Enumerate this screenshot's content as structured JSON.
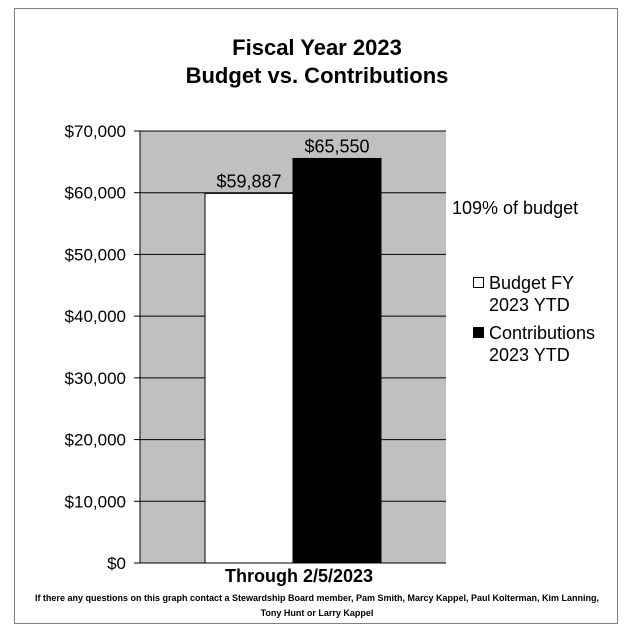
{
  "title_line1": "Fiscal Year 2023",
  "title_line2": "Budget vs. Contributions",
  "annotation": "109% of budget",
  "footnote": "If there any questions on this graph contact a Stewardship Board member, Pam Smith, Marcy Kappel, Paul Kolterman,  Kim Lanning, Tony Hunt  or Larry Kappel",
  "chart_data": {
    "type": "bar",
    "title": "Fiscal Year 2023 Budget vs. Contributions",
    "categories": [
      "Through 2/5/2023"
    ],
    "xlabel": "Through 2/5/2023",
    "ylabel": "",
    "ylim": [
      0,
      70000
    ],
    "y_ticks": [
      0,
      10000,
      20000,
      30000,
      40000,
      50000,
      60000,
      70000
    ],
    "y_tick_labels": [
      "$0",
      "$10,000",
      "$20,000",
      "$30,000",
      "$40,000",
      "$50,000",
      "$60,000",
      "$70,000"
    ],
    "grid": true,
    "plot_background": "#c0c0c0",
    "legend_position": "right",
    "series": [
      {
        "name": "Budget FY 2023 YTD",
        "values": [
          59887
        ],
        "data_labels": [
          "$59,887"
        ],
        "color": "#ffffff"
      },
      {
        "name": "Contributions 2023 YTD",
        "values": [
          65550
        ],
        "data_labels": [
          "$65,550"
        ],
        "color": "#000000"
      }
    ],
    "legend": [
      {
        "line1": "Budget FY",
        "line2": "2023 YTD",
        "color": "#ffffff"
      },
      {
        "line1": "Contributions",
        "line2": "2023 YTD",
        "color": "#000000"
      }
    ]
  }
}
